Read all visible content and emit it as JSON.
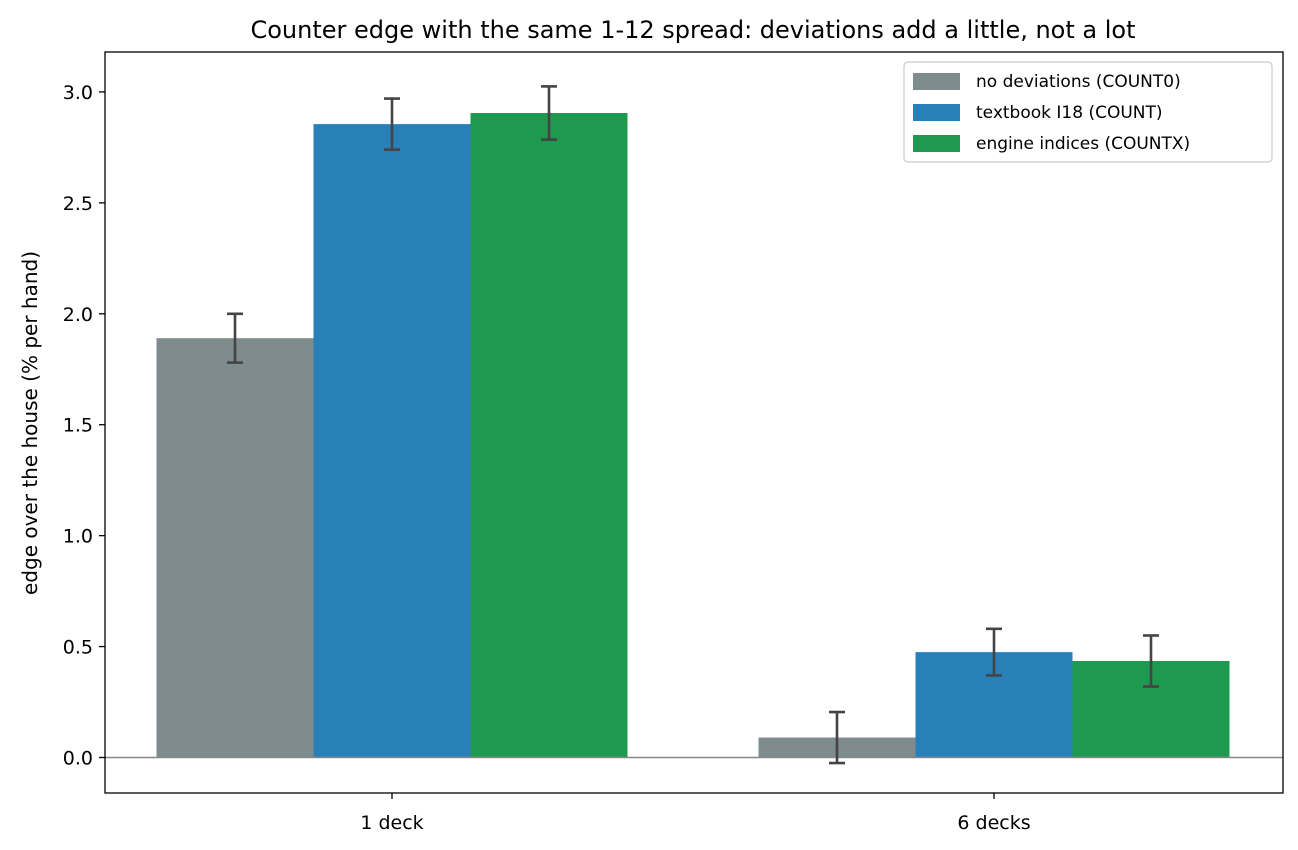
{
  "chart_data": {
    "type": "bar",
    "title": "Counter edge with the same 1-12 spread: deviations add a little, not a lot",
    "xlabel": "",
    "ylabel": "edge over the house (% per hand)",
    "categories": [
      "1 deck",
      "6 decks"
    ],
    "ylim": [
      -0.16,
      3.18
    ],
    "yticks": [
      0.0,
      0.5,
      1.0,
      1.5,
      2.0,
      2.5,
      3.0
    ],
    "ytick_labels": [
      "0.0",
      "0.5",
      "1.0",
      "1.5",
      "2.0",
      "2.5",
      "3.0"
    ],
    "grid": false,
    "zero_line": true,
    "legend_position": "top-right",
    "error_bar_color": "#444444",
    "zero_line_color": "#888888",
    "series": [
      {
        "name": "no deviations  (COUNT0)",
        "color": "#7f8c8d",
        "values": [
          1.89,
          0.09
        ],
        "errors": [
          0.11,
          0.115
        ]
      },
      {
        "name": "textbook I18  (COUNT)",
        "color": "#2980b9",
        "values": [
          2.855,
          0.475
        ],
        "errors": [
          0.115,
          0.105
        ]
      },
      {
        "name": "engine indices  (COUNTX)",
        "color": "#1e9a4e",
        "values": [
          2.905,
          0.435
        ],
        "errors": [
          0.12,
          0.115
        ]
      }
    ]
  }
}
